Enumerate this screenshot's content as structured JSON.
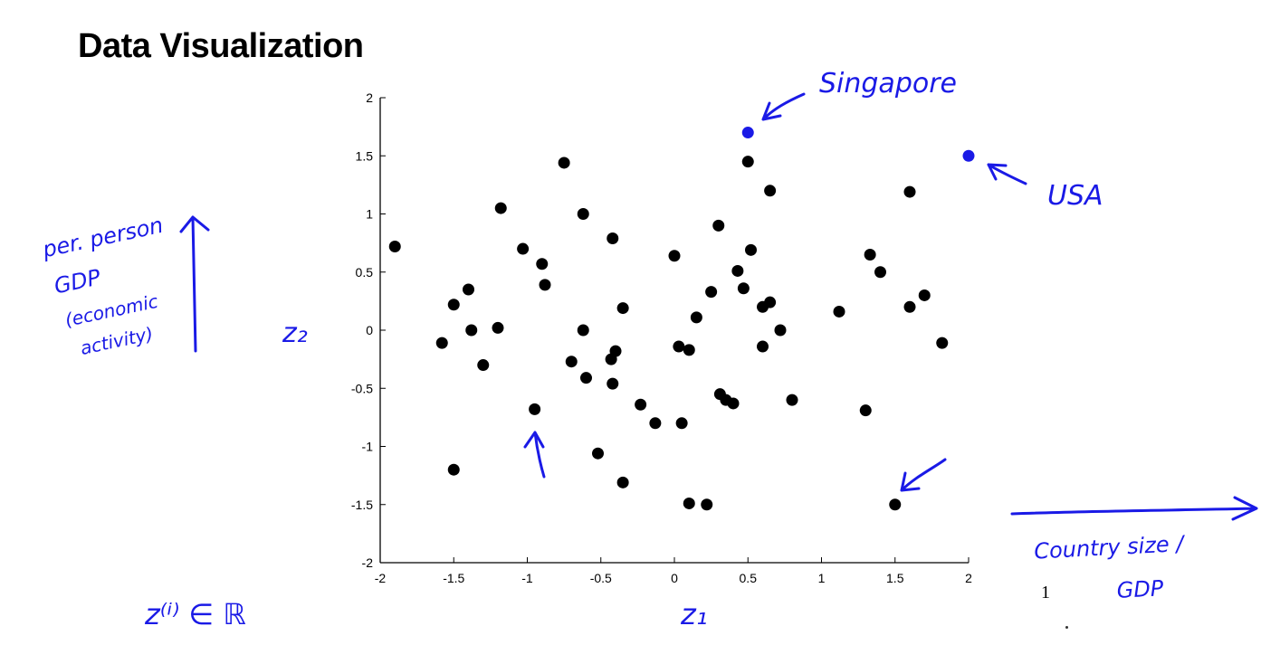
{
  "slide": {
    "title": "Data Visualization",
    "page_number": "1"
  },
  "annotations": {
    "singapore": "Singapore",
    "usa": "USA",
    "y_axis_note": [
      "per. person",
      "GDP",
      "(economic",
      "activity)"
    ],
    "x_axis_note": [
      "Country size /",
      "GDP"
    ],
    "z2_label": "z₂",
    "z1_label": "z₁",
    "z_in_r": "z⁽ⁱ⁾ ∈ ℝ",
    "ink_color": "#1a1ae6"
  },
  "chart_data": {
    "type": "scatter",
    "xlabel": "",
    "ylabel": "",
    "xlim": [
      -2,
      2
    ],
    "ylim": [
      -2,
      2
    ],
    "x_ticks": [
      "-2",
      "-1.5",
      "-1",
      "-0.5",
      "0",
      "0.5",
      "1",
      "1.5",
      "2"
    ],
    "y_ticks": [
      "2",
      "1.5",
      "1",
      "0.5",
      "0",
      "-0.5",
      "-1",
      "-1.5",
      "-2"
    ],
    "grid": false,
    "point_color": "#000000",
    "highlight_color": "#1a1ae6",
    "points": [
      {
        "x": -1.9,
        "y": 0.72
      },
      {
        "x": -1.58,
        "y": -0.11
      },
      {
        "x": -1.5,
        "y": 0.22
      },
      {
        "x": -1.5,
        "y": -1.2
      },
      {
        "x": -1.4,
        "y": 0.35
      },
      {
        "x": -1.38,
        "y": 0.0
      },
      {
        "x": -1.3,
        "y": -0.3
      },
      {
        "x": -1.18,
        "y": 1.05
      },
      {
        "x": -1.2,
        "y": 0.02
      },
      {
        "x": -1.03,
        "y": 0.7
      },
      {
        "x": -0.95,
        "y": -0.68
      },
      {
        "x": -0.9,
        "y": 0.57
      },
      {
        "x": -0.88,
        "y": 0.39
      },
      {
        "x": -0.75,
        "y": 1.44
      },
      {
        "x": -0.7,
        "y": -0.27
      },
      {
        "x": -0.62,
        "y": 1.0
      },
      {
        "x": -0.62,
        "y": 0.0
      },
      {
        "x": -0.6,
        "y": -0.41
      },
      {
        "x": -0.52,
        "y": -1.06
      },
      {
        "x": -0.42,
        "y": 0.79
      },
      {
        "x": -0.43,
        "y": -0.25
      },
      {
        "x": -0.4,
        "y": -0.18
      },
      {
        "x": -0.42,
        "y": -0.46
      },
      {
        "x": -0.35,
        "y": 0.19
      },
      {
        "x": -0.35,
        "y": -1.31
      },
      {
        "x": -0.23,
        "y": -0.64
      },
      {
        "x": -0.13,
        "y": -0.8
      },
      {
        "x": 0.0,
        "y": 0.64
      },
      {
        "x": 0.03,
        "y": -0.14
      },
      {
        "x": 0.05,
        "y": -0.8
      },
      {
        "x": 0.1,
        "y": -0.17
      },
      {
        "x": 0.1,
        "y": -1.49
      },
      {
        "x": 0.15,
        "y": 0.11
      },
      {
        "x": 0.22,
        "y": -1.5
      },
      {
        "x": 0.25,
        "y": 0.33
      },
      {
        "x": 0.3,
        "y": 0.9
      },
      {
        "x": 0.31,
        "y": -0.55
      },
      {
        "x": 0.35,
        "y": -0.6
      },
      {
        "x": 0.4,
        "y": -0.63
      },
      {
        "x": 0.43,
        "y": 0.51
      },
      {
        "x": 0.47,
        "y": 0.36
      },
      {
        "x": 0.5,
        "y": 1.45
      },
      {
        "x": 0.52,
        "y": 0.69
      },
      {
        "x": 0.6,
        "y": 0.2
      },
      {
        "x": 0.6,
        "y": -0.14
      },
      {
        "x": 0.65,
        "y": 1.2
      },
      {
        "x": 0.65,
        "y": 0.24
      },
      {
        "x": 0.72,
        "y": 0.0
      },
      {
        "x": 0.8,
        "y": -0.6
      },
      {
        "x": 1.12,
        "y": 0.16
      },
      {
        "x": 1.3,
        "y": -0.69
      },
      {
        "x": 1.33,
        "y": 0.65
      },
      {
        "x": 1.4,
        "y": 0.5
      },
      {
        "x": 1.5,
        "y": -1.5
      },
      {
        "x": 1.6,
        "y": 1.19
      },
      {
        "x": 1.6,
        "y": 0.2
      },
      {
        "x": 1.7,
        "y": 0.3
      },
      {
        "x": 1.82,
        "y": -0.11
      }
    ],
    "highlighted_points": [
      {
        "x": 0.5,
        "y": 1.7,
        "label": "Singapore"
      },
      {
        "x": 2.0,
        "y": 1.5,
        "label": "USA"
      }
    ]
  }
}
